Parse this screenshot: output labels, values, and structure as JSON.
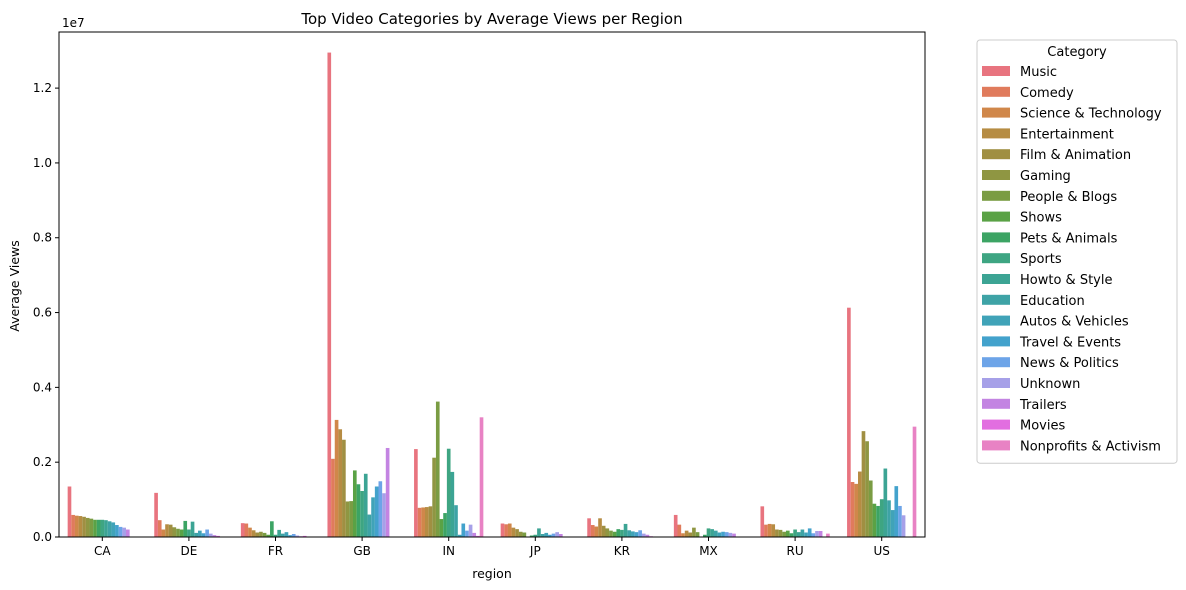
{
  "chart_data": {
    "type": "bar",
    "title": "Top Video Categories by Average Views per Region",
    "xlabel": "region",
    "ylabel": "Average Views",
    "y_multiplier_label": "1e7",
    "ylim": [
      0,
      13500000
    ],
    "yticks": [
      0.0,
      0.2,
      0.4,
      0.6,
      0.8,
      1.0,
      1.2
    ],
    "categories": [
      "CA",
      "DE",
      "FR",
      "GB",
      "IN",
      "JP",
      "KR",
      "MX",
      "RU",
      "US"
    ],
    "legend": {
      "title": "Category",
      "position": "outside-right"
    },
    "grid": false,
    "series": [
      {
        "name": "Music",
        "color": "#e8747f",
        "values": [
          1350000,
          1180000,
          370000,
          12950000,
          2350000,
          360000,
          500000,
          590000,
          820000,
          6130000
        ]
      },
      {
        "name": "Comedy",
        "color": "#e07b5c",
        "values": [
          590000,
          450000,
          360000,
          2090000,
          780000,
          340000,
          320000,
          330000,
          330000,
          1470000
        ]
      },
      {
        "name": "Science & Technology",
        "color": "#d0874a",
        "values": [
          570000,
          200000,
          250000,
          3130000,
          790000,
          360000,
          280000,
          100000,
          350000,
          1420000
        ]
      },
      {
        "name": "Entertainment",
        "color": "#b68c43",
        "values": [
          560000,
          340000,
          180000,
          2880000,
          800000,
          250000,
          500000,
          170000,
          340000,
          1750000
        ]
      },
      {
        "name": "Film & Animation",
        "color": "#a08f42",
        "values": [
          540000,
          330000,
          120000,
          2600000,
          820000,
          210000,
          300000,
          120000,
          200000,
          2830000
        ]
      },
      {
        "name": "Gaming",
        "color": "#8f9642",
        "values": [
          510000,
          260000,
          140000,
          950000,
          2120000,
          140000,
          230000,
          250000,
          190000,
          2560000
        ]
      },
      {
        "name": "People & Blogs",
        "color": "#7a9c43",
        "values": [
          490000,
          220000,
          110000,
          960000,
          3620000,
          120000,
          170000,
          130000,
          140000,
          1510000
        ]
      },
      {
        "name": "Shows",
        "color": "#5aa245",
        "values": [
          460000,
          200000,
          60000,
          1780000,
          480000,
          0,
          140000,
          0,
          170000,
          890000
        ]
      },
      {
        "name": "Pets & Animals",
        "color": "#3ca464",
        "values": [
          460000,
          430000,
          420000,
          1410000,
          640000,
          40000,
          210000,
          60000,
          100000,
          830000
        ]
      },
      {
        "name": "Sports",
        "color": "#3ea582",
        "values": [
          460000,
          200000,
          60000,
          1230000,
          2360000,
          60000,
          190000,
          230000,
          200000,
          1010000
        ]
      },
      {
        "name": "Howto & Style",
        "color": "#3ca494",
        "values": [
          450000,
          410000,
          190000,
          1690000,
          1740000,
          230000,
          350000,
          210000,
          130000,
          1830000
        ]
      },
      {
        "name": "Education",
        "color": "#3ea3a6",
        "values": [
          420000,
          110000,
          90000,
          600000,
          850000,
          80000,
          180000,
          170000,
          200000,
          980000
        ]
      },
      {
        "name": "Autos & Vehicles",
        "color": "#40a3b8",
        "values": [
          390000,
          170000,
          130000,
          1060000,
          60000,
          110000,
          150000,
          120000,
          120000,
          720000
        ]
      },
      {
        "name": "Travel & Events",
        "color": "#43a2cc",
        "values": [
          320000,
          100000,
          50000,
          1350000,
          360000,
          60000,
          130000,
          140000,
          230000,
          1360000
        ]
      },
      {
        "name": "News & Politics",
        "color": "#6da4e8",
        "values": [
          270000,
          200000,
          80000,
          1490000,
          170000,
          90000,
          180000,
          130000,
          100000,
          830000
        ]
      },
      {
        "name": "Unknown",
        "color": "#a6a0e8",
        "values": [
          250000,
          90000,
          40000,
          1170000,
          330000,
          130000,
          90000,
          110000,
          160000,
          580000
        ]
      },
      {
        "name": "Trailers",
        "color": "#c384e2",
        "values": [
          200000,
          50000,
          20000,
          2380000,
          110000,
          80000,
          60000,
          90000,
          160000,
          0
        ]
      },
      {
        "name": "Movies",
        "color": "#e26ee0",
        "values": [
          0,
          30000,
          30000,
          0,
          30000,
          0,
          20000,
          0,
          0,
          0
        ]
      },
      {
        "name": "Nonprofits & Activism",
        "color": "#e882c4",
        "values": [
          0,
          0,
          10000,
          0,
          3200000,
          0,
          0,
          0,
          90000,
          2950000
        ]
      }
    ]
  },
  "colors": {
    "axis": "#000000",
    "background": "#ffffff"
  }
}
